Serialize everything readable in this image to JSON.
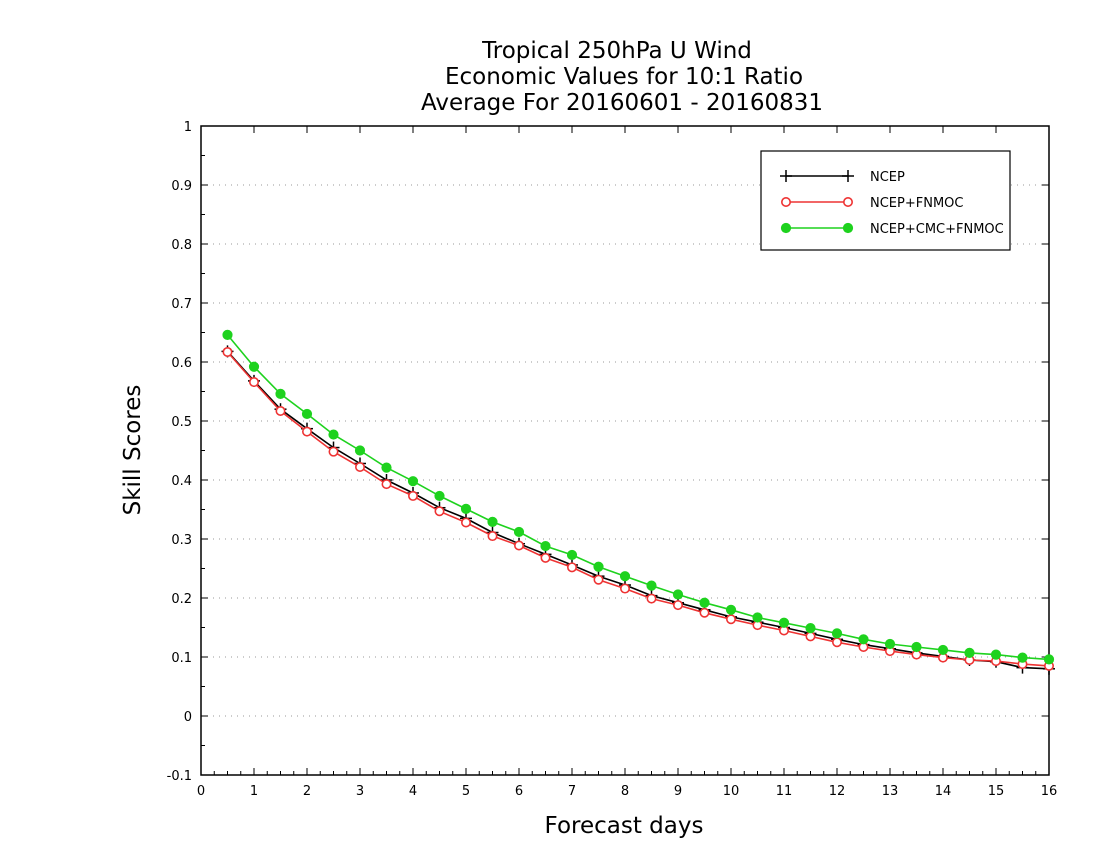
{
  "chart_data": {
    "type": "line",
    "title": [
      "Tropical 250hPa U Wind",
      "Economic Values for 10:1 Ratio",
      "Average For 20160601 - 20160831"
    ],
    "xlabel": "Forecast days",
    "ylabel": "Skill Scores",
    "xlim": [
      0,
      16
    ],
    "ylim": [
      -0.1,
      1
    ],
    "xticks": [
      0,
      1,
      2,
      3,
      4,
      5,
      6,
      7,
      8,
      9,
      10,
      11,
      12,
      13,
      14,
      15,
      16
    ],
    "yticks": [
      -0.1,
      0,
      0.1,
      0.2,
      0.3,
      0.4,
      0.5,
      0.6,
      0.7,
      0.8,
      0.9,
      1
    ],
    "ytick_labels": [
      "-0.1",
      "0",
      "0.1",
      "0.2",
      "0.3",
      "0.4",
      "0.5",
      "0.6",
      "0.7",
      "0.8",
      "0.9",
      "1"
    ],
    "grid": "dotted horizontal",
    "legend_position": "top-right",
    "x": [
      0.5,
      1,
      1.5,
      2,
      2.5,
      3,
      3.5,
      4,
      4.5,
      5,
      5.5,
      6,
      6.5,
      7,
      7.5,
      8,
      8.5,
      9,
      9.5,
      10,
      10.5,
      11,
      11.5,
      12,
      12.5,
      13,
      13.5,
      14,
      14.5,
      15,
      15.5,
      16
    ],
    "series": [
      {
        "name": "NCEP",
        "color": "#000000",
        "marker": "plus",
        "values": [
          0.618,
          0.568,
          0.52,
          0.487,
          0.455,
          0.428,
          0.4,
          0.378,
          0.353,
          0.335,
          0.311,
          0.292,
          0.274,
          0.256,
          0.237,
          0.222,
          0.204,
          0.192,
          0.18,
          0.168,
          0.159,
          0.15,
          0.14,
          0.13,
          0.121,
          0.114,
          0.107,
          0.101,
          0.095,
          0.092,
          0.082,
          0.08
        ]
      },
      {
        "name": "NCEP+FNMOC",
        "color": "#ee3333",
        "marker": "open-circle",
        "values": [
          0.617,
          0.566,
          0.517,
          0.482,
          0.448,
          0.422,
          0.393,
          0.373,
          0.347,
          0.328,
          0.305,
          0.289,
          0.268,
          0.252,
          0.231,
          0.216,
          0.199,
          0.188,
          0.175,
          0.164,
          0.154,
          0.145,
          0.135,
          0.125,
          0.117,
          0.11,
          0.104,
          0.099,
          0.095,
          0.093,
          0.088,
          0.085
        ]
      },
      {
        "name": "NCEP+CMC+FNMOC",
        "color": "#1ed21e",
        "marker": "filled-circle",
        "values": [
          0.646,
          0.592,
          0.546,
          0.512,
          0.477,
          0.45,
          0.421,
          0.398,
          0.373,
          0.351,
          0.329,
          0.312,
          0.288,
          0.273,
          0.253,
          0.237,
          0.221,
          0.206,
          0.192,
          0.18,
          0.167,
          0.158,
          0.149,
          0.14,
          0.13,
          0.122,
          0.117,
          0.112,
          0.107,
          0.104,
          0.099,
          0.096
        ]
      }
    ]
  }
}
